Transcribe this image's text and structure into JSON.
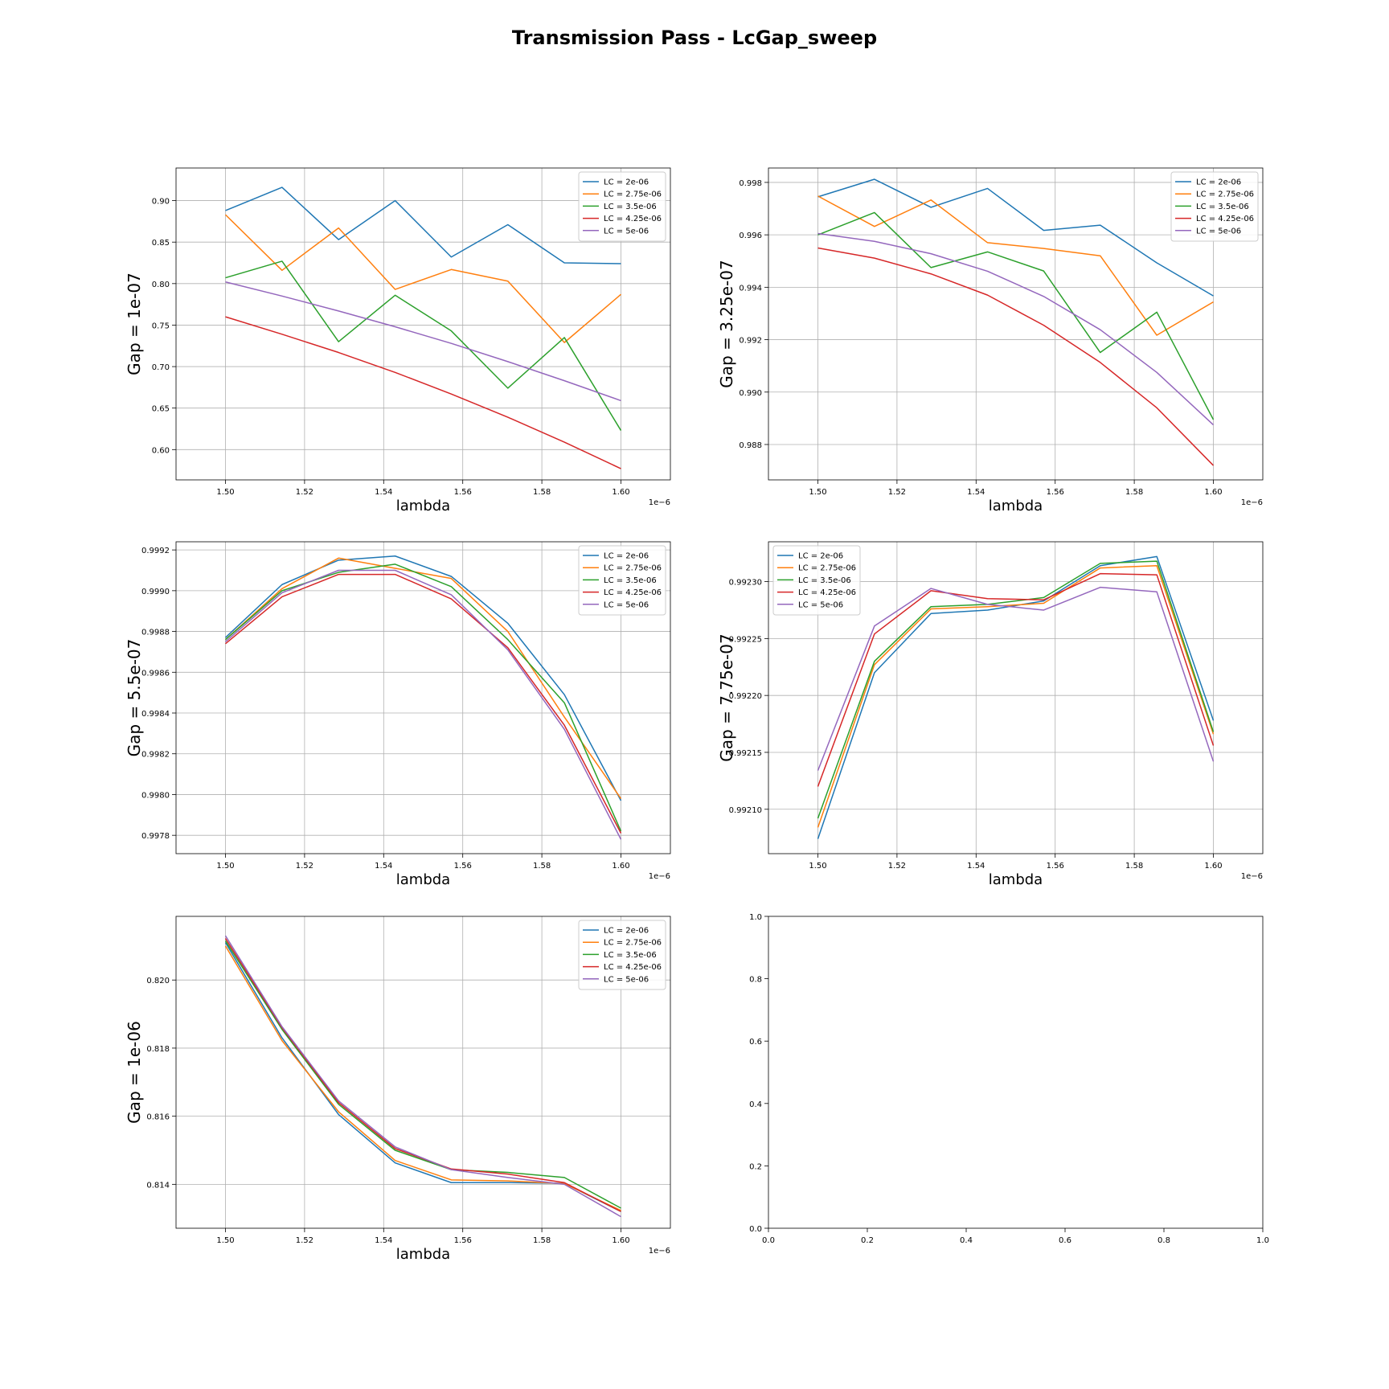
{
  "figure": {
    "title": "Transmission Pass - LcGap_sweep"
  },
  "palette": {
    "axis": "#000000",
    "grid": "#b0b0b0",
    "legend_border": "#cccccc"
  },
  "chart_data": [
    {
      "type": "line",
      "xlabel": "lambda",
      "ylabel": "Gap = 1e-07",
      "x_offset_label": "1e−6",
      "xlim": [
        1.4875e-06,
        1.6125e-06
      ],
      "ylim": [
        0.5635,
        0.9393
      ],
      "xticks": [
        1.5e-06,
        1.52e-06,
        1.54e-06,
        1.56e-06,
        1.58e-06,
        1.6e-06
      ],
      "xtick_labels": [
        "1.50",
        "1.52",
        "1.54",
        "1.56",
        "1.58",
        "1.60"
      ],
      "yticks": [
        0.6,
        0.65,
        0.7,
        0.75,
        0.8,
        0.85,
        0.9
      ],
      "ytick_labels": [
        "0.60",
        "0.65",
        "0.70",
        "0.75",
        "0.80",
        "0.85",
        "0.90"
      ],
      "legend": "top-right",
      "grid": true,
      "x": [
        1.5e-06,
        1.5143e-06,
        1.5286e-06,
        1.5429e-06,
        1.5571e-06,
        1.5714e-06,
        1.5857e-06,
        1.6e-06
      ],
      "series": [
        {
          "name": "LC = 2e-06",
          "color": "#1f77b4",
          "values": [
            0.888,
            0.916,
            0.853,
            0.9,
            0.832,
            0.871,
            0.825,
            0.824
          ]
        },
        {
          "name": "LC = 2.75e-06",
          "color": "#ff7f0e",
          "values": [
            0.883,
            0.816,
            0.867,
            0.793,
            0.817,
            0.803,
            0.729,
            0.787
          ]
        },
        {
          "name": "LC = 3.5e-06",
          "color": "#2ca02c",
          "values": [
            0.807,
            0.827,
            0.73,
            0.786,
            0.743,
            0.674,
            0.735,
            0.623
          ]
        },
        {
          "name": "LC = 4.25e-06",
          "color": "#d62728",
          "values": [
            0.76,
            0.739,
            0.717,
            0.693,
            0.667,
            0.639,
            0.609,
            0.577
          ]
        },
        {
          "name": "LC = 5e-06",
          "color": "#9467bd",
          "values": [
            0.802,
            0.785,
            0.767,
            0.748,
            0.728,
            0.706,
            0.683,
            0.659
          ]
        }
      ]
    },
    {
      "type": "line",
      "xlabel": "lambda",
      "ylabel": "Gap = 3.25e-07",
      "x_offset_label": "1e−6",
      "xlim": [
        1.4875e-06,
        1.6125e-06
      ],
      "ylim": [
        0.98665,
        0.99855
      ],
      "xticks": [
        1.5e-06,
        1.52e-06,
        1.54e-06,
        1.56e-06,
        1.58e-06,
        1.6e-06
      ],
      "xtick_labels": [
        "1.50",
        "1.52",
        "1.54",
        "1.56",
        "1.58",
        "1.60"
      ],
      "yticks": [
        0.988,
        0.99,
        0.992,
        0.994,
        0.996,
        0.998
      ],
      "ytick_labels": [
        "0.988",
        "0.990",
        "0.992",
        "0.994",
        "0.996",
        "0.998"
      ],
      "legend": "top-right",
      "grid": true,
      "x": [
        1.5e-06,
        1.5143e-06,
        1.5286e-06,
        1.5429e-06,
        1.5571e-06,
        1.5714e-06,
        1.5857e-06,
        1.6e-06
      ],
      "series": [
        {
          "name": "LC = 2e-06",
          "color": "#1f77b4",
          "values": [
            0.99745,
            0.99812,
            0.99705,
            0.99777,
            0.99617,
            0.99637,
            0.99493,
            0.99367
          ]
        },
        {
          "name": "LC = 2.75e-06",
          "color": "#ff7f0e",
          "values": [
            0.99748,
            0.99632,
            0.99733,
            0.9957,
            0.99548,
            0.9952,
            0.99217,
            0.99344
          ]
        },
        {
          "name": "LC = 3.5e-06",
          "color": "#2ca02c",
          "values": [
            0.996,
            0.99685,
            0.99475,
            0.99535,
            0.99462,
            0.99151,
            0.99305,
            0.98895
          ]
        },
        {
          "name": "LC = 4.25e-06",
          "color": "#d62728",
          "values": [
            0.9955,
            0.99511,
            0.99451,
            0.9937,
            0.99255,
            0.99113,
            0.9894,
            0.9872
          ]
        },
        {
          "name": "LC = 5e-06",
          "color": "#9467bd",
          "values": [
            0.99605,
            0.99575,
            0.99528,
            0.99461,
            0.99365,
            0.99238,
            0.99075,
            0.98875
          ]
        }
      ]
    },
    {
      "type": "line",
      "xlabel": "lambda",
      "ylabel": "Gap = 5.5e-07",
      "x_offset_label": "1e−6",
      "xlim": [
        1.4875e-06,
        1.6125e-06
      ],
      "ylim": [
        0.99771,
        0.99924
      ],
      "xticks": [
        1.5e-06,
        1.52e-06,
        1.54e-06,
        1.56e-06,
        1.58e-06,
        1.6e-06
      ],
      "xtick_labels": [
        "1.50",
        "1.52",
        "1.54",
        "1.56",
        "1.58",
        "1.60"
      ],
      "yticks": [
        0.9978,
        0.998,
        0.9982,
        0.9984,
        0.9986,
        0.9988,
        0.999,
        0.9992
      ],
      "ytick_labels": [
        "0.9978",
        "0.9980",
        "0.9982",
        "0.9984",
        "0.9986",
        "0.9988",
        "0.9990",
        "0.9992"
      ],
      "legend": "top-right",
      "grid": true,
      "x": [
        1.5e-06,
        1.5143e-06,
        1.5286e-06,
        1.5429e-06,
        1.5571e-06,
        1.5714e-06,
        1.5857e-06,
        1.6e-06
      ],
      "series": [
        {
          "name": "LC = 2e-06",
          "color": "#1f77b4",
          "values": [
            0.99877,
            0.99903,
            0.99915,
            0.99917,
            0.99907,
            0.99884,
            0.99849,
            0.99797
          ]
        },
        {
          "name": "LC = 2.75e-06",
          "color": "#ff7f0e",
          "values": [
            0.99876,
            0.99901,
            0.99916,
            0.99911,
            0.99906,
            0.9988,
            0.99838,
            0.99798
          ]
        },
        {
          "name": "LC = 3.5e-06",
          "color": "#2ca02c",
          "values": [
            0.99876,
            0.999,
            0.99909,
            0.99913,
            0.99902,
            0.99876,
            0.99845,
            0.99782
          ]
        },
        {
          "name": "LC = 4.25e-06",
          "color": "#d62728",
          "values": [
            0.99874,
            0.99897,
            0.99908,
            0.99908,
            0.99896,
            0.99872,
            0.99834,
            0.99781
          ]
        },
        {
          "name": "LC = 5e-06",
          "color": "#9467bd",
          "values": [
            0.99875,
            0.99899,
            0.9991,
            0.9991,
            0.99898,
            0.99871,
            0.99832,
            0.99778
          ]
        }
      ]
    },
    {
      "type": "line",
      "xlabel": "lambda",
      "ylabel": "Gap = 7.75e-07",
      "x_offset_label": "1e−6",
      "xlim": [
        1.4875e-06,
        1.6125e-06
      ],
      "ylim": [
        0.992061,
        0.992335
      ],
      "xticks": [
        1.5e-06,
        1.52e-06,
        1.54e-06,
        1.56e-06,
        1.58e-06,
        1.6e-06
      ],
      "xtick_labels": [
        "1.50",
        "1.52",
        "1.54",
        "1.56",
        "1.58",
        "1.60"
      ],
      "yticks": [
        0.9921,
        0.99215,
        0.9922,
        0.99225,
        0.9923
      ],
      "ytick_labels": [
        "0.99210",
        "0.99215",
        "0.99220",
        "0.99225",
        "0.99230"
      ],
      "legend": "top-left",
      "grid": true,
      "x": [
        1.5e-06,
        1.5143e-06,
        1.5286e-06,
        1.5429e-06,
        1.5571e-06,
        1.5714e-06,
        1.5857e-06,
        1.6e-06
      ],
      "series": [
        {
          "name": "LC = 2e-06",
          "color": "#1f77b4",
          "values": [
            0.992074,
            0.99222,
            0.992272,
            0.992275,
            0.992283,
            0.992314,
            0.992322,
            0.992178
          ]
        },
        {
          "name": "LC = 2.75e-06",
          "color": "#ff7f0e",
          "values": [
            0.992084,
            0.992227,
            0.992276,
            0.992278,
            0.992281,
            0.992312,
            0.992314,
            0.992166
          ]
        },
        {
          "name": "LC = 3.5e-06",
          "color": "#2ca02c",
          "values": [
            0.992092,
            0.99223,
            0.992278,
            0.99228,
            0.992286,
            0.992316,
            0.992318,
            0.992168
          ]
        },
        {
          "name": "LC = 4.25e-06",
          "color": "#d62728",
          "values": [
            0.99212,
            0.992254,
            0.992292,
            0.992285,
            0.992284,
            0.992307,
            0.992306,
            0.992156
          ]
        },
        {
          "name": "LC = 5e-06",
          "color": "#9467bd",
          "values": [
            0.992134,
            0.992261,
            0.992294,
            0.99228,
            0.992275,
            0.992295,
            0.992291,
            0.992142
          ]
        }
      ]
    },
    {
      "type": "line",
      "xlabel": "lambda",
      "ylabel": "Gap = 1e-06",
      "x_offset_label": "1e−6",
      "xlim": [
        1.4875e-06,
        1.6125e-06
      ],
      "ylim": [
        0.81271,
        0.82187
      ],
      "xticks": [
        1.5e-06,
        1.52e-06,
        1.54e-06,
        1.56e-06,
        1.58e-06,
        1.6e-06
      ],
      "xtick_labels": [
        "1.50",
        "1.52",
        "1.54",
        "1.56",
        "1.58",
        "1.60"
      ],
      "yticks": [
        0.814,
        0.816,
        0.818,
        0.82
      ],
      "ytick_labels": [
        "0.814",
        "0.816",
        "0.818",
        "0.820"
      ],
      "legend": "top-right",
      "grid": true,
      "x": [
        1.5e-06,
        1.5143e-06,
        1.5286e-06,
        1.5429e-06,
        1.5571e-06,
        1.5714e-06,
        1.5857e-06,
        1.6e-06
      ],
      "series": [
        {
          "name": "LC = 2e-06",
          "color": "#1f77b4",
          "values": [
            0.8211,
            0.8183,
            0.81605,
            0.81463,
            0.81405,
            0.81405,
            0.81403,
            0.8132
          ]
        },
        {
          "name": "LC = 2.75e-06",
          "color": "#ff7f0e",
          "values": [
            0.821,
            0.81822,
            0.81613,
            0.8147,
            0.81413,
            0.8141,
            0.81402,
            0.81323
          ]
        },
        {
          "name": "LC = 3.5e-06",
          "color": "#2ca02c",
          "values": [
            0.82115,
            0.81855,
            0.81635,
            0.815,
            0.81443,
            0.81435,
            0.8142,
            0.8133
          ]
        },
        {
          "name": "LC = 4.25e-06",
          "color": "#d62728",
          "values": [
            0.82122,
            0.8186,
            0.8164,
            0.81505,
            0.81445,
            0.8143,
            0.81405,
            0.8132
          ]
        },
        {
          "name": "LC = 5e-06",
          "color": "#9467bd",
          "values": [
            0.8213,
            0.81863,
            0.81645,
            0.8151,
            0.81443,
            0.8142,
            0.814,
            0.81305
          ]
        }
      ]
    },
    {
      "type": "line",
      "xlabel": "",
      "ylabel": "",
      "x_offset_label": "",
      "xlim": [
        0,
        1
      ],
      "ylim": [
        0,
        1
      ],
      "xticks": [
        0,
        0.2,
        0.4,
        0.6,
        0.8,
        1.0
      ],
      "xtick_labels": [
        "0.0",
        "0.2",
        "0.4",
        "0.6",
        "0.8",
        "1.0"
      ],
      "yticks": [
        0,
        0.2,
        0.4,
        0.6,
        0.8,
        1.0
      ],
      "ytick_labels": [
        "0.0",
        "0.2",
        "0.4",
        "0.6",
        "0.8",
        "1.0"
      ],
      "legend": "none",
      "grid": false,
      "x": [],
      "series": []
    }
  ]
}
